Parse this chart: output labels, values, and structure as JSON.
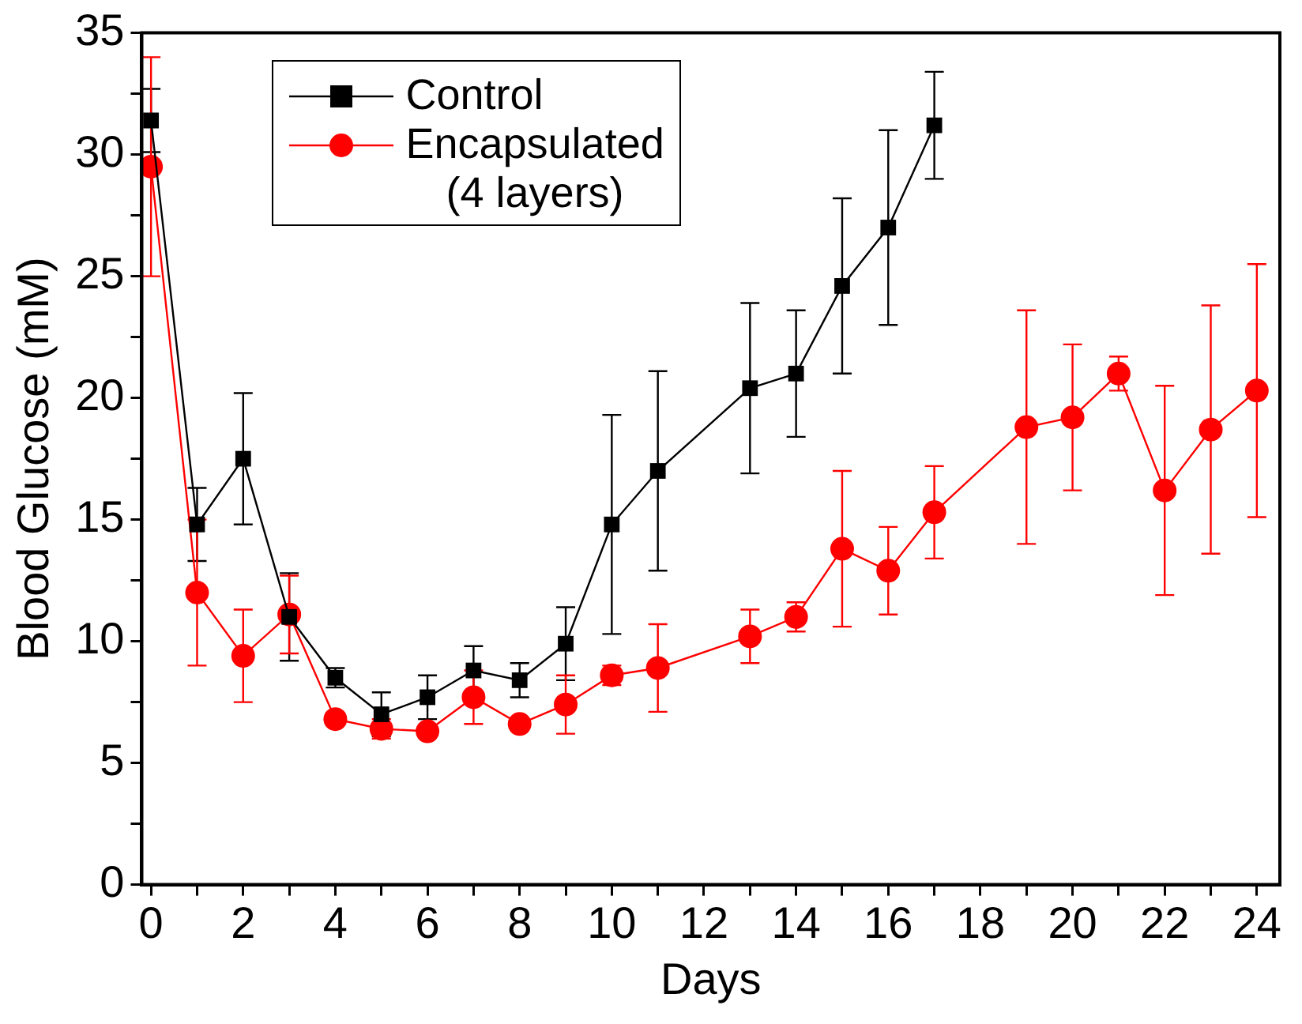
{
  "chart_data": {
    "type": "line",
    "xlabel": "Days",
    "ylabel": "Blood Glucose (mM)",
    "xlim": [
      -0.2,
      24.5
    ],
    "xticks": [
      0,
      {
        "value": 1,
        "label": null
      },
      2,
      {
        "value": 3,
        "label": null
      },
      4,
      {
        "value": 5,
        "label": null
      },
      6,
      {
        "value": 7,
        "label": null
      },
      8,
      {
        "value": 9,
        "label": null
      },
      10,
      {
        "value": 11,
        "label": null
      },
      12,
      {
        "value": 13,
        "label": null
      },
      14,
      {
        "value": 15,
        "label": null
      },
      16,
      {
        "value": 17,
        "label": null
      },
      18,
      {
        "value": 19,
        "label": null
      },
      20,
      {
        "value": 21,
        "label": null
      },
      22,
      {
        "value": 23,
        "label": null
      },
      24
    ],
    "ylim": [
      0,
      35
    ],
    "yticks": [
      0,
      {
        "value": 2.5,
        "label": null
      },
      5,
      {
        "value": 7.5,
        "label": null
      },
      10,
      {
        "value": 12.5,
        "label": null
      },
      15,
      {
        "value": 17.5,
        "label": null
      },
      20,
      {
        "value": 22.5,
        "label": null
      },
      25,
      {
        "value": 27.5,
        "label": null
      },
      30,
      {
        "value": 32.5,
        "label": null
      },
      35
    ],
    "grid": false,
    "legend": "top left",
    "line_style": "solid",
    "series": [
      {
        "name": "Control",
        "color": "#000000",
        "marker": "square",
        "x": [
          0,
          1,
          2,
          3,
          4,
          5,
          6,
          7,
          8,
          9,
          10,
          11,
          13,
          14,
          15,
          16,
          17
        ],
        "values": [
          31.4,
          14.8,
          17.5,
          11.0,
          8.5,
          7.0,
          7.7,
          8.8,
          8.4,
          9.9,
          14.8,
          17.0,
          20.4,
          21.0,
          24.6,
          27.0,
          31.2
        ],
        "errors": [
          1.3,
          1.5,
          2.7,
          1.8,
          0.4,
          0.9,
          0.9,
          1.0,
          0.7,
          1.5,
          4.5,
          4.1,
          3.5,
          2.6,
          3.6,
          4.0,
          2.2
        ]
      },
      {
        "name": "Encapsulated\n(4 layers)",
        "color": "#ff0000",
        "marker": "circle",
        "x": [
          0,
          1,
          2,
          3,
          4,
          5,
          6,
          7,
          8,
          9,
          10,
          11,
          13,
          14,
          15,
          16,
          17,
          19,
          20,
          21,
          22,
          23,
          24
        ],
        "values": [
          29.5,
          12.0,
          9.4,
          11.1,
          6.8,
          6.4,
          6.3,
          7.7,
          6.6,
          7.4,
          8.6,
          8.9,
          10.2,
          11.0,
          13.8,
          12.9,
          15.3,
          18.8,
          19.2,
          21.0,
          16.2,
          18.7,
          20.3
        ],
        "errors": [
          4.5,
          3.0,
          1.9,
          1.6,
          null,
          0.4,
          null,
          1.1,
          null,
          1.2,
          0.4,
          1.8,
          1.1,
          0.6,
          3.2,
          1.8,
          1.9,
          4.8,
          3.0,
          0.7,
          4.3,
          5.1,
          5.2
        ]
      }
    ]
  }
}
